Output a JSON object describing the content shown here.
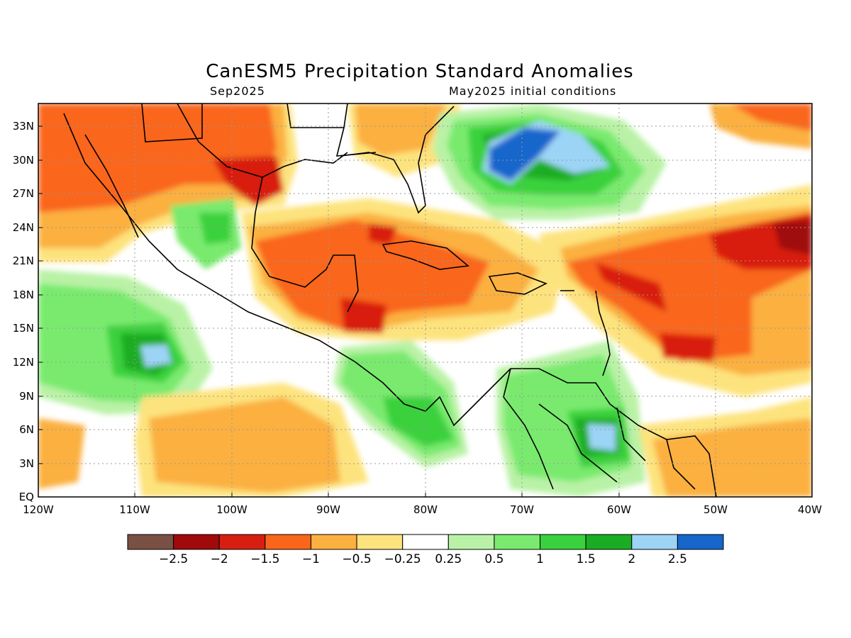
{
  "title": "CanESM5 Precipitation Standard Anomalies",
  "subtitle_left": "Sep2025",
  "subtitle_right": "May2025 initial conditions",
  "lat_ticks": [
    "33N",
    "30N",
    "27N",
    "24N",
    "21N",
    "18N",
    "15N",
    "12N",
    "9N",
    "6N",
    "3N",
    "EQ"
  ],
  "lon_ticks": [
    "120W",
    "110W",
    "100W",
    "90W",
    "80W",
    "70W",
    "60W",
    "50W",
    "40W"
  ],
  "colorbar": {
    "labels": [
      "-2.5",
      "-2",
      "-1.5",
      "-1",
      "-0.5",
      "-0.25",
      "0.25",
      "0.5",
      "1",
      "1.5",
      "2",
      "2.5"
    ],
    "colors": [
      "#7a5045",
      "#a00a0a",
      "#d81e10",
      "#f9661a",
      "#fbb03f",
      "#fde37d",
      "#ffffff",
      "#b9f2a6",
      "#79ea6e",
      "#3ad13e",
      "#1aad23",
      "#9cd4f6",
      "#1666cc"
    ]
  },
  "colors": {
    "land_outline": "#000000",
    "gridline": "#999999"
  }
}
